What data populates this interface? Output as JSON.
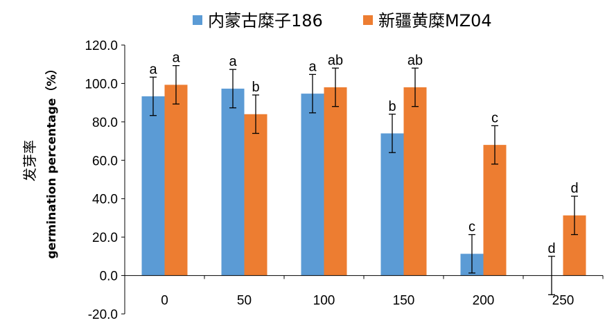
{
  "chart_data": {
    "type": "bar",
    "title": "",
    "xlabel": "",
    "ylabel_cn": "发芽率",
    "ylabel_en": "germination percentage（%）",
    "categories": [
      "0",
      "50",
      "100",
      "150",
      "200",
      "250"
    ],
    "ylim": [
      -20,
      120
    ],
    "yticks": [
      "-20.0",
      "0.0",
      "20.0",
      "40.0",
      "60.0",
      "80.0",
      "100.0",
      "120.0"
    ],
    "ytick_values": [
      -20,
      0,
      20,
      40,
      60,
      80,
      100,
      120
    ],
    "legend_position": "top",
    "grid": false,
    "series": [
      {
        "name": "内蒙古糜子186",
        "color": "#5B9BD5",
        "values": [
          93.3,
          97.3,
          94.7,
          74.0,
          11.3,
          0.0
        ],
        "error": [
          10.0,
          10.0,
          10.0,
          10.0,
          10.0,
          10.0
        ],
        "labels": [
          "a",
          "a",
          "a",
          "b",
          "c",
          "d"
        ]
      },
      {
        "name": "新疆黄糜MZ04",
        "color": "#ED7D31",
        "values": [
          99.3,
          84.0,
          98.0,
          98.0,
          68.0,
          31.3
        ],
        "error": [
          10.0,
          10.0,
          10.0,
          10.0,
          10.0,
          10.0
        ],
        "labels": [
          "a",
          "b",
          "ab",
          "ab",
          "c",
          "d"
        ]
      }
    ]
  }
}
